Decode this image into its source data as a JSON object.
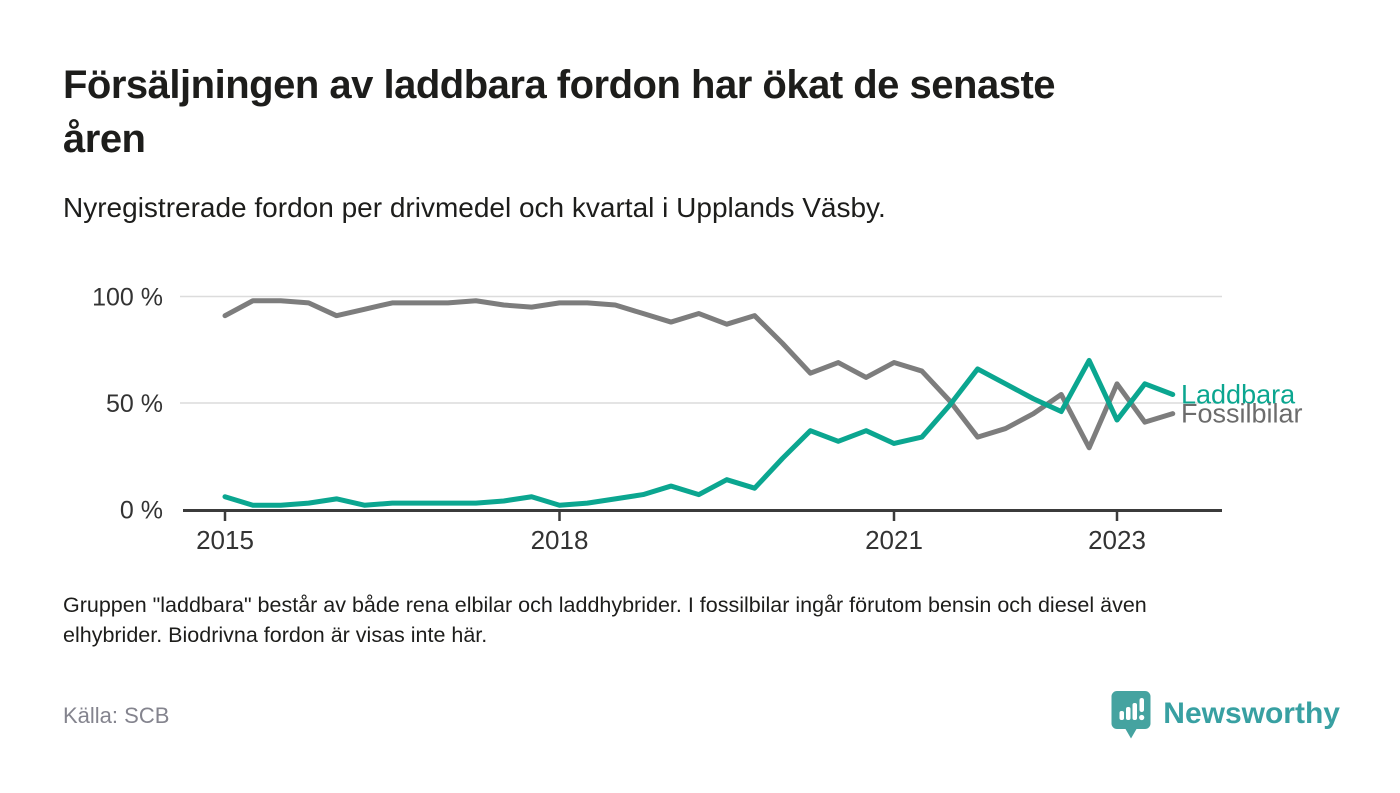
{
  "header": {
    "title": "Försäljningen av laddbara fordon har ökat de senaste\nåren",
    "subtitle": "Nyregistrerade fordon per drivmedel och kvartal i Upplands Väsby."
  },
  "chart_data": {
    "type": "line",
    "x_unit": "quarter",
    "x": [
      "2015 Q1",
      "2015 Q2",
      "2015 Q3",
      "2015 Q4",
      "2016 Q1",
      "2016 Q2",
      "2016 Q3",
      "2016 Q4",
      "2017 Q1",
      "2017 Q2",
      "2017 Q3",
      "2017 Q4",
      "2018 Q1",
      "2018 Q2",
      "2018 Q3",
      "2018 Q4",
      "2019 Q1",
      "2019 Q2",
      "2019 Q3",
      "2019 Q4",
      "2020 Q1",
      "2020 Q2",
      "2020 Q3",
      "2020 Q4",
      "2021 Q1",
      "2021 Q2",
      "2021 Q3",
      "2021 Q4",
      "2022 Q1",
      "2022 Q2",
      "2022 Q3",
      "2022 Q4",
      "2023 Q1",
      "2023 Q2",
      "2023 Q3"
    ],
    "series": [
      {
        "name": "Laddbara",
        "color": "#0ba690",
        "label_color": "#0ba690",
        "values": [
          6,
          2,
          2,
          3,
          5,
          2,
          3,
          3,
          3,
          3,
          4,
          6,
          2,
          3,
          5,
          7,
          11,
          7,
          14,
          10,
          24,
          37,
          32,
          37,
          31,
          34,
          49,
          66,
          59,
          52,
          46,
          70,
          42,
          59,
          54
        ]
      },
      {
        "name": "Fossilbilar",
        "color": "#7d7d7d",
        "label_color": "#6c6c6c",
        "values": [
          91,
          98,
          98,
          97,
          91,
          94,
          97,
          97,
          97,
          98,
          96,
          95,
          97,
          97,
          96,
          92,
          88,
          92,
          87,
          91,
          78,
          64,
          69,
          62,
          69,
          65,
          51,
          34,
          38,
          45,
          54,
          29,
          59,
          41,
          45
        ]
      }
    ],
    "ylim": [
      0,
      100
    ],
    "yticks": [
      {
        "value": 0,
        "label": "0 %"
      },
      {
        "value": 50,
        "label": "50 %"
      },
      {
        "value": 100,
        "label": "100 %"
      }
    ],
    "xticks": [
      {
        "index": 0,
        "label": "2015"
      },
      {
        "index": 12,
        "label": "2018"
      },
      {
        "index": 24,
        "label": "2021"
      },
      {
        "index": 32,
        "label": "2023"
      }
    ],
    "grid": "horizontal",
    "legend_position": "end-of-line",
    "axis_color": "#3b3b3b",
    "gridline_color": "#dcdcdc",
    "tick_label_color": "#333333"
  },
  "footer": {
    "notes": "Gruppen \"laddbara\" består av både rena elbilar och laddhybrider. I fossilbilar ingår förutom bensin och diesel även\nelhybrider. Biodrivna fordon är visas inte här.",
    "source": "Källa: SCB",
    "brand": "Newsworthy",
    "brand_color": "#38a0a2",
    "logo_color": "#45a3a0"
  }
}
